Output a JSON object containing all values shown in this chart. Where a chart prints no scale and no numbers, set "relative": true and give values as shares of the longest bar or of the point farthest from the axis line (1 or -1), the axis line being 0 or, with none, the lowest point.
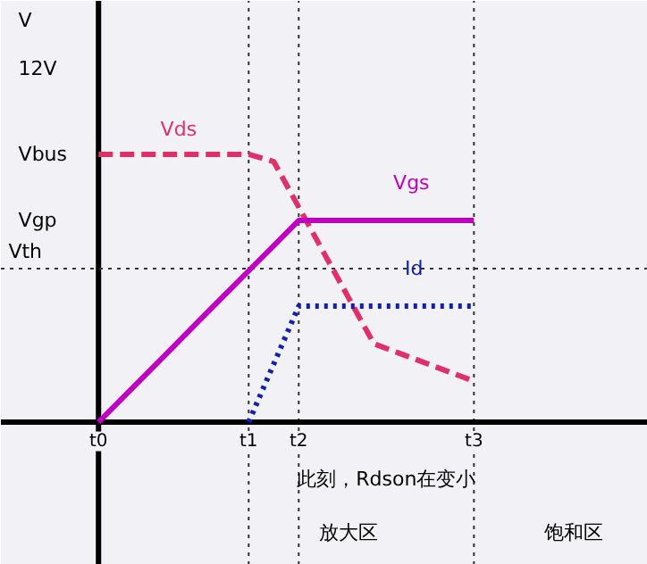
{
  "chart_data": {
    "type": "line",
    "relative": true,
    "categories": [
      "t0",
      null,
      null,
      null,
      null,
      null,
      "t1",
      null,
      "t2",
      null,
      null,
      null,
      null,
      null,
      null,
      "t3",
      null,
      null,
      null,
      null,
      null,
      null
    ],
    "series": [
      {
        "name": "Vds",
        "color": "#e0306a",
        "line_style": "dashed",
        "values": [
          1,
          1,
          1,
          1,
          1,
          1,
          1,
          0.973,
          0.803,
          0.633,
          0.463,
          0.293,
          0.258,
          0.223,
          0.188,
          0.153,
          null,
          null,
          null,
          null,
          null,
          null
        ]
      },
      {
        "name": "Vgs",
        "color": "#c000c0",
        "line_style": "solid",
        "values": [
          0,
          0.094,
          0.188,
          0.282,
          0.377,
          0.471,
          0.565,
          0.659,
          0.753,
          0.753,
          0.753,
          0.753,
          0.753,
          0.753,
          0.753,
          0.753,
          null,
          null,
          null,
          null,
          null,
          null
        ]
      },
      {
        "name": "Id",
        "color": "#1020b0",
        "line_style": "dotted",
        "values": [
          null,
          null,
          null,
          null,
          null,
          null,
          0,
          0.217,
          0.433,
          0.433,
          0.433,
          0.433,
          0.433,
          0.433,
          0.433,
          0.433,
          null,
          null,
          null,
          null,
          null,
          null
        ]
      }
    ],
    "ref_lines": [
      {
        "axis": "y",
        "value": 0.573,
        "label": "Vth",
        "line_style": "dotted"
      },
      {
        "axis": "x",
        "value": "t1",
        "line_style": "dotted"
      },
      {
        "axis": "x",
        "value": "t2",
        "line_style": "dotted"
      },
      {
        "axis": "x",
        "value": "t3",
        "line_style": "dotted"
      }
    ],
    "annotations": [
      "V",
      "12V",
      "Vbus",
      "Vgp",
      "此刻，Rdson在变小",
      "放大区",
      "饱和区"
    ]
  }
}
